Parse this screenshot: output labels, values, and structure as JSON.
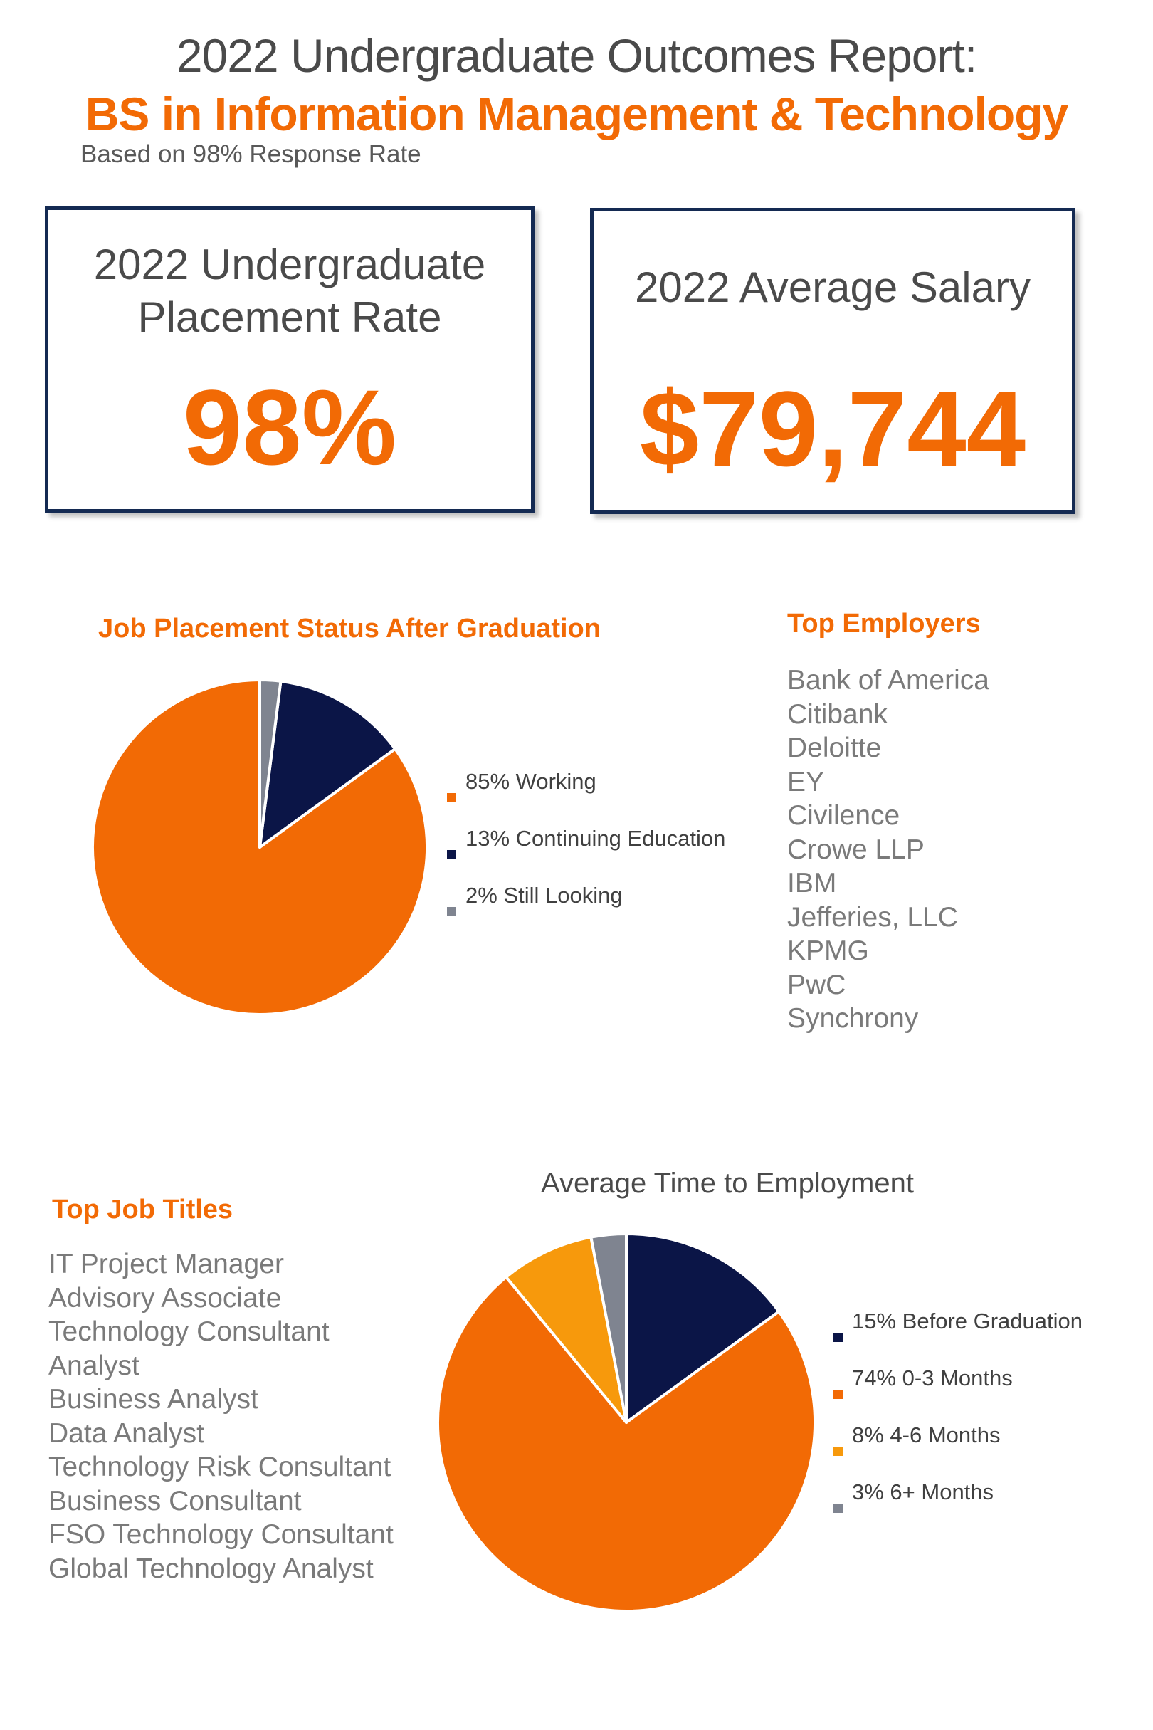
{
  "header": {
    "title": "2022 Undergraduate Outcomes Report:",
    "subtitle": "BS in Information Management & Technology",
    "response_note": "Based on 98% Response Rate"
  },
  "kpis": {
    "placement_label_line1": "2022 Undergraduate",
    "placement_label_line2": "Placement Rate",
    "placement_value": "98%",
    "salary_label": "2022 Average Salary",
    "salary_value": "$79,744"
  },
  "top_employers": {
    "title": "Top Employers",
    "items": [
      "Bank of America",
      "Citibank",
      "Deloitte",
      "EY",
      "Civilence",
      "Crowe LLP",
      "IBM",
      "Jefferies, LLC",
      "KPMG",
      "PwC",
      "Synchrony"
    ]
  },
  "top_job_titles": {
    "title": "Top Job Titles",
    "items": [
      "IT Project Manager",
      "Advisory Associate",
      "Technology Consultant",
      "Analyst",
      "Business Analyst",
      "Data Analyst",
      "Technology Risk Consultant",
      "Business Consultant",
      "FSO Technology Consultant",
      "Global Technology Analyst"
    ]
  },
  "colors": {
    "orange": "#f26a05",
    "navy": "#0b1547",
    "gray": "#7f8490",
    "light_orange": "#f7990c",
    "border_navy": "#142a52"
  },
  "chart_data": [
    {
      "type": "pie",
      "title": "Job Placement Status After Graduation",
      "series": [
        {
          "name": "85% Working",
          "value": 85,
          "color": "#f26a05"
        },
        {
          "name": "13% Continuing Education",
          "value": 13,
          "color": "#0b1547"
        },
        {
          "name": "2% Still Looking",
          "value": 2,
          "color": "#7f8490"
        }
      ],
      "start": "top",
      "direction": "counterclockwise",
      "legend": "right"
    },
    {
      "type": "pie",
      "title": "Average Time to Employment",
      "series": [
        {
          "name": "15% Before Graduation",
          "value": 15,
          "color": "#0b1547"
        },
        {
          "name": "74% 0-3 Months",
          "value": 74,
          "color": "#f26a05"
        },
        {
          "name": "8% 4-6 Months",
          "value": 8,
          "color": "#f7990c"
        },
        {
          "name": "3% 6+ Months",
          "value": 3,
          "color": "#7f8490"
        }
      ],
      "start": "top",
      "direction": "clockwise",
      "legend": "right"
    }
  ]
}
